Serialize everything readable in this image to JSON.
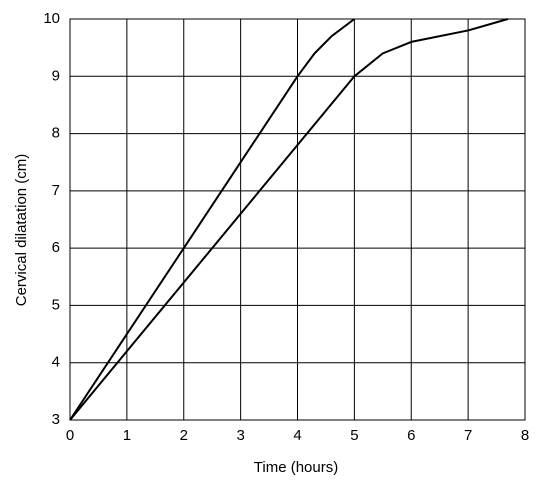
{
  "chart_data": {
    "type": "line",
    "xlabel": "Time (hours)",
    "ylabel": "Cervical dilatation (cm)",
    "xlim": [
      0,
      8
    ],
    "xticks": [
      0,
      1,
      2,
      3,
      4,
      5,
      6,
      7,
      8
    ],
    "ylim": [
      3,
      10
    ],
    "yticks": [
      3,
      4,
      5,
      6,
      7,
      8,
      9,
      10
    ],
    "grid": true,
    "series": [
      {
        "color": "#000000",
        "x": [
          0,
          1,
          2,
          3,
          4,
          4.3,
          4.6,
          5
        ],
        "values": [
          3,
          4.5,
          6,
          7.5,
          9,
          9.4,
          9.7,
          10
        ]
      },
      {
        "color": "#000000",
        "x": [
          0,
          1,
          2,
          3,
          4,
          5,
          5.5,
          6,
          7,
          7.7
        ],
        "values": [
          3,
          4.2,
          5.4,
          6.6,
          7.8,
          9,
          9.4,
          9.6,
          9.8,
          10
        ]
      }
    ]
  }
}
